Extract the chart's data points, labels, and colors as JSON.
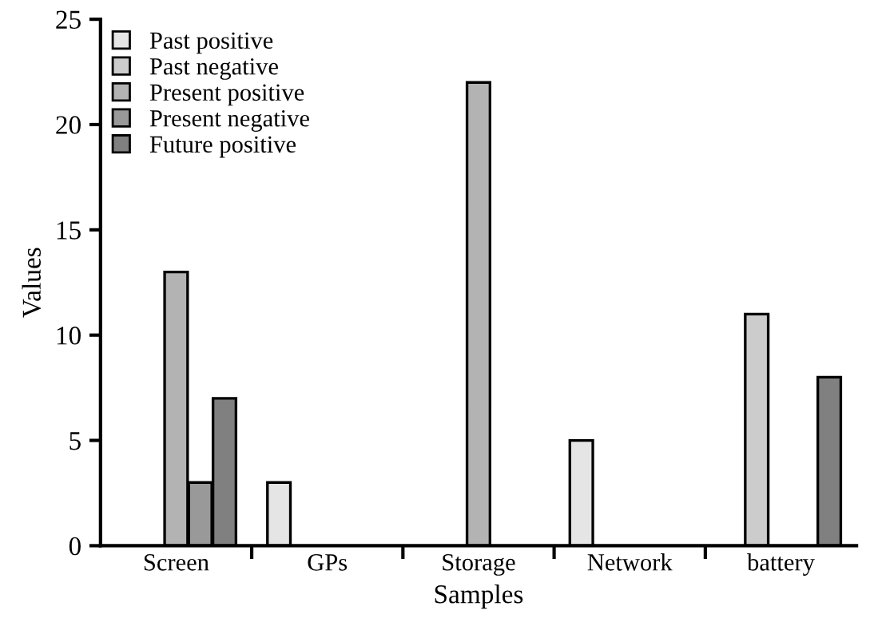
{
  "chart_data": {
    "type": "bar",
    "xlabel": "Samples",
    "ylabel": "Values",
    "categories": [
      "Screen",
      "GPs",
      "Storage",
      "Network",
      "battery"
    ],
    "series": [
      {
        "name": "Past positive",
        "color": "#e5e5e5",
        "values": [
          null,
          3,
          null,
          5,
          null
        ]
      },
      {
        "name": "Past negative",
        "color": "#cccccc",
        "values": [
          null,
          null,
          null,
          null,
          11
        ]
      },
      {
        "name": "Present positive",
        "color": "#b3b3b3",
        "values": [
          13,
          null,
          22,
          null,
          null
        ]
      },
      {
        "name": "Present negative",
        "color": "#999999",
        "values": [
          3,
          null,
          null,
          null,
          null
        ]
      },
      {
        "name": "Future positive",
        "color": "#808080",
        "values": [
          7,
          null,
          null,
          null,
          8
        ]
      }
    ],
    "ylim": [
      0,
      25
    ],
    "yticks": [
      0,
      5,
      10,
      15,
      20,
      25
    ],
    "grid": false,
    "legend": "top left"
  }
}
